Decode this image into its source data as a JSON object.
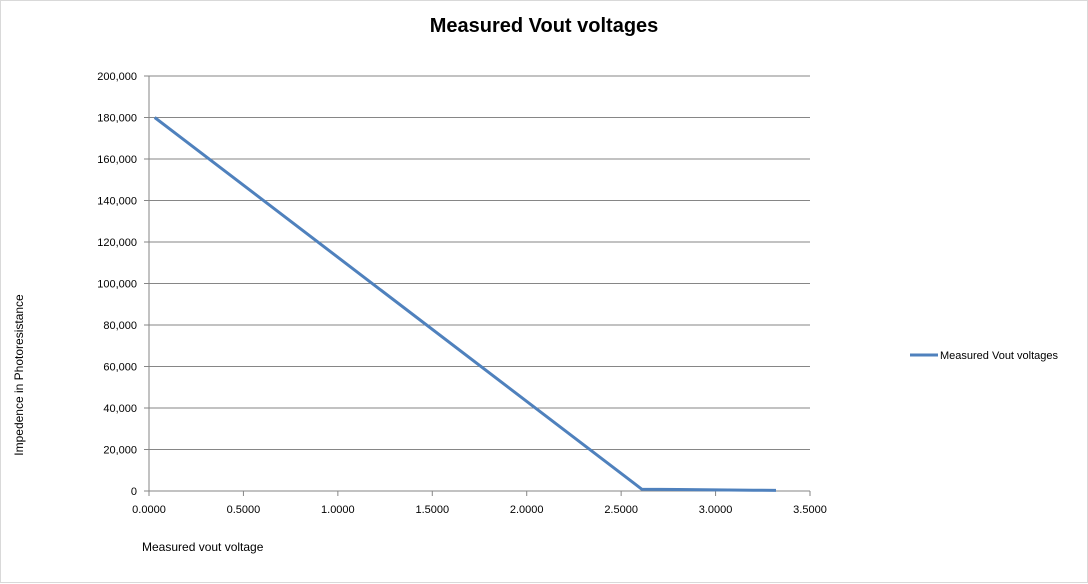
{
  "chart_data": {
    "type": "line",
    "title": "Measured Vout voltages",
    "xlabel": "Measured vout voltage",
    "ylabel": "Impedence in Photoresistance",
    "xlim": [
      0,
      3.5
    ],
    "ylim": [
      0,
      200000
    ],
    "x_ticks": [
      "0.0000",
      "0.5000",
      "1.0000",
      "1.5000",
      "2.0000",
      "2.5000",
      "3.0000",
      "3.5000"
    ],
    "y_ticks": [
      "0",
      "20,000",
      "40,000",
      "60,000",
      "80,000",
      "100,000",
      "120,000",
      "140,000",
      "160,000",
      "180,000",
      "200,000"
    ],
    "grid": "horizontal",
    "legend_position": "right",
    "series": [
      {
        "name": "Measured Vout voltages",
        "color": "#4f81bd",
        "x": [
          0.03,
          2.61,
          2.8,
          3.0,
          3.2,
          3.32
        ],
        "y": [
          180000,
          800,
          700,
          550,
          400,
          300
        ]
      }
    ]
  }
}
